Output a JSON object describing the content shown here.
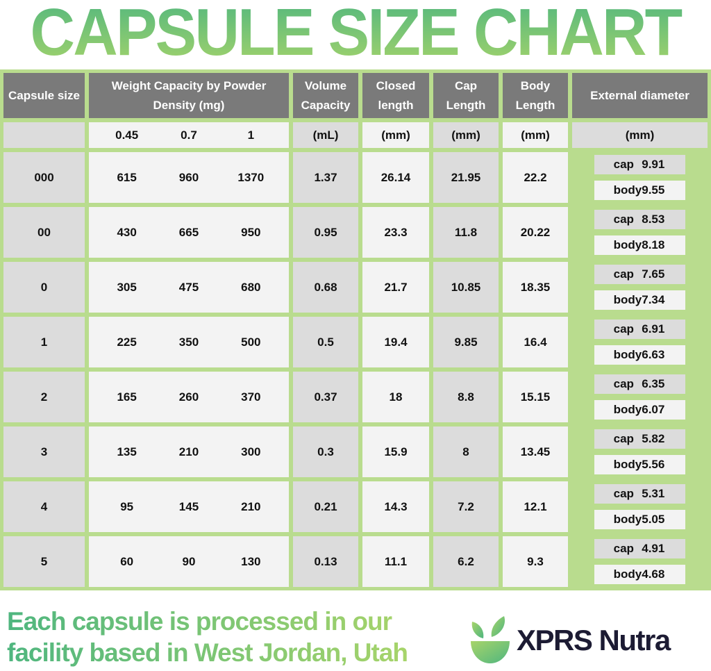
{
  "title": "CAPSULE SIZE CHART",
  "chart_data": {
    "type": "table",
    "title": "CAPSULE SIZE CHART",
    "headers": [
      "Capsule size",
      "Weight Capacity by Powder Density (mg)",
      "Volume Capacity",
      "Closed length",
      "Cap Length",
      "Body Length",
      "External diameter"
    ],
    "units": {
      "weight_densities": [
        "0.45",
        "0.7",
        "1"
      ],
      "volume": "(mL)",
      "closed": "(mm)",
      "cap": "(mm)",
      "body": "(mm)",
      "external": "(mm)"
    },
    "ext_labels": {
      "cap": "cap",
      "body": "body"
    },
    "rows": [
      {
        "size": "000",
        "w045": "615",
        "w07": "960",
        "w1": "1370",
        "volume": "1.37",
        "closed": "26.14",
        "cap": "21.95",
        "body": "22.2",
        "ext_cap": "9.91",
        "ext_body": "9.55"
      },
      {
        "size": "00",
        "w045": "430",
        "w07": "665",
        "w1": "950",
        "volume": "0.95",
        "closed": "23.3",
        "cap": "11.8",
        "body": "20.22",
        "ext_cap": "8.53",
        "ext_body": "8.18"
      },
      {
        "size": "0",
        "w045": "305",
        "w07": "475",
        "w1": "680",
        "volume": "0.68",
        "closed": "21.7",
        "cap": "10.85",
        "body": "18.35",
        "ext_cap": "7.65",
        "ext_body": "7.34"
      },
      {
        "size": "1",
        "w045": "225",
        "w07": "350",
        "w1": "500",
        "volume": "0.5",
        "closed": "19.4",
        "cap": "9.85",
        "body": "16.4",
        "ext_cap": "6.91",
        "ext_body": "6.63"
      },
      {
        "size": "2",
        "w045": "165",
        "w07": "260",
        "w1": "370",
        "volume": "0.37",
        "closed": "18",
        "cap": "8.8",
        "body": "15.15",
        "ext_cap": "6.35",
        "ext_body": "6.07"
      },
      {
        "size": "3",
        "w045": "135",
        "w07": "210",
        "w1": "300",
        "volume": "0.3",
        "closed": "15.9",
        "cap": "8",
        "body": "13.45",
        "ext_cap": "5.82",
        "ext_body": "5.56"
      },
      {
        "size": "4",
        "w045": "95",
        "w07": "145",
        "w1": "210",
        "volume": "0.21",
        "closed": "14.3",
        "cap": "7.2",
        "body": "12.1",
        "ext_cap": "5.31",
        "ext_body": "5.05"
      },
      {
        "size": "5",
        "w045": "60",
        "w07": "90",
        "w1": "130",
        "volume": "0.13",
        "closed": "11.1",
        "cap": "6.2",
        "body": "9.3",
        "ext_cap": "4.91",
        "ext_body": "4.68"
      }
    ]
  },
  "footer": {
    "line1": "Each capsule is processed in our",
    "line2": "facility based in West Jordan, Utah"
  },
  "brand": {
    "name": "XPRS Nutra",
    "icon": "leaf-bowl-logo"
  },
  "colors": {
    "header_bg": "#7a7a7a",
    "border_green": "#b9dc8e",
    "cell_dark": "#dcdcdc",
    "cell_light": "#f3f3f3",
    "title_green": "#4fb67f",
    "brand_text": "#1c1b33"
  }
}
